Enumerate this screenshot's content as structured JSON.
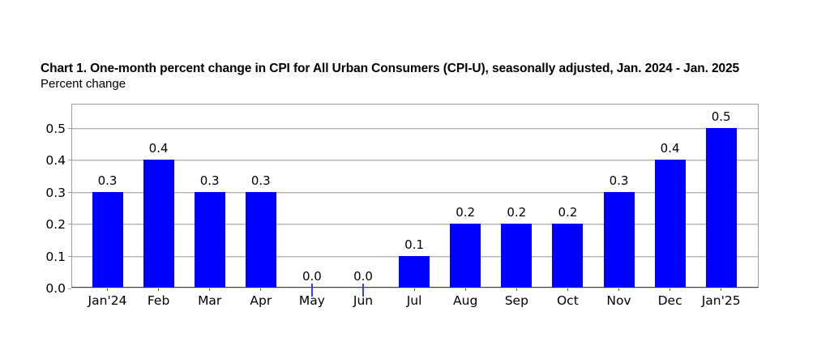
{
  "chart_data": {
    "type": "bar",
    "title": "Chart 1. One-month percent change in CPI for All Urban Consumers (CPI-U), seasonally adjusted, Jan. 2024 - Jan. 2025",
    "ylabel": "Percent change",
    "categories": [
      "Jan'24",
      "Feb",
      "Mar",
      "Apr",
      "May",
      "Jun",
      "Jul",
      "Aug",
      "Sep",
      "Oct",
      "Nov",
      "Dec",
      "Jan'25"
    ],
    "values": [
      0.3,
      0.4,
      0.3,
      0.3,
      0.0,
      0.0,
      0.1,
      0.2,
      0.2,
      0.2,
      0.3,
      0.4,
      0.5
    ],
    "bar_labels": [
      "0.3",
      "0.4",
      "0.3",
      "0.3",
      "0.0",
      "0.0",
      "0.1",
      "0.2",
      "0.2",
      "0.2",
      "0.3",
      "0.4",
      "0.5"
    ],
    "y_ticks": [
      "0.0",
      "0.1",
      "0.2",
      "0.3",
      "0.4",
      "0.5"
    ],
    "ylim": [
      0,
      0.575
    ],
    "grid": "horizontal",
    "legend": "none",
    "colors": {
      "bar": "#0000ff",
      "gridline": "#b4b4b4",
      "gridline_shadow": "#e3e3e3",
      "frame": "#9d9d9d",
      "axis": "#3f3f3f",
      "text": "#000000",
      "background": "#ffffff"
    }
  }
}
